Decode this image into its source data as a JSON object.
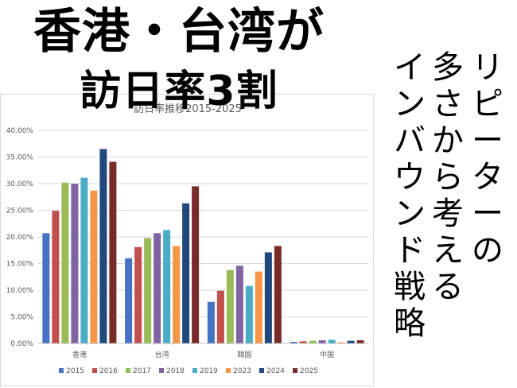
{
  "headline": {
    "line1": "香港・台湾が",
    "line2": "訪日率3割"
  },
  "vertical_title": {
    "col1": "リピーターの",
    "col2": "多さから考える",
    "col3": "インバウンド戦略"
  },
  "chart_data": {
    "type": "bar",
    "title": "訪日率推移2015-2025",
    "categories": [
      "香港",
      "台湾",
      "韓国",
      "中国"
    ],
    "series": [
      {
        "name": "2015",
        "color": "#4472c4",
        "values": [
          0.207,
          0.16,
          0.078,
          0.003
        ]
      },
      {
        "name": "2016",
        "color": "#c0504d",
        "values": [
          0.249,
          0.181,
          0.099,
          0.004
        ]
      },
      {
        "name": "2017",
        "color": "#9bbb59",
        "values": [
          0.302,
          0.198,
          0.138,
          0.005
        ]
      },
      {
        "name": "2018",
        "color": "#8064a2",
        "values": [
          0.3,
          0.207,
          0.146,
          0.006
        ]
      },
      {
        "name": "2019",
        "color": "#4bacc6",
        "values": [
          0.311,
          0.213,
          0.108,
          0.007
        ]
      },
      {
        "name": "2023",
        "color": "#f79646",
        "values": [
          0.287,
          0.183,
          0.135,
          0.002
        ]
      },
      {
        "name": "2024",
        "color": "#1f497d",
        "values": [
          0.365,
          0.263,
          0.171,
          0.005
        ]
      },
      {
        "name": "2025",
        "color": "#772c2a",
        "values": [
          0.341,
          0.295,
          0.183,
          0.006
        ]
      }
    ],
    "ylim": [
      0,
      0.4
    ],
    "yticks": [
      "0.00%",
      "5.00%",
      "10.00%",
      "15.00%",
      "20.00%",
      "25.00%",
      "30.00%",
      "35.00%",
      "40.00%"
    ],
    "grid": true,
    "legend": "bottom"
  }
}
